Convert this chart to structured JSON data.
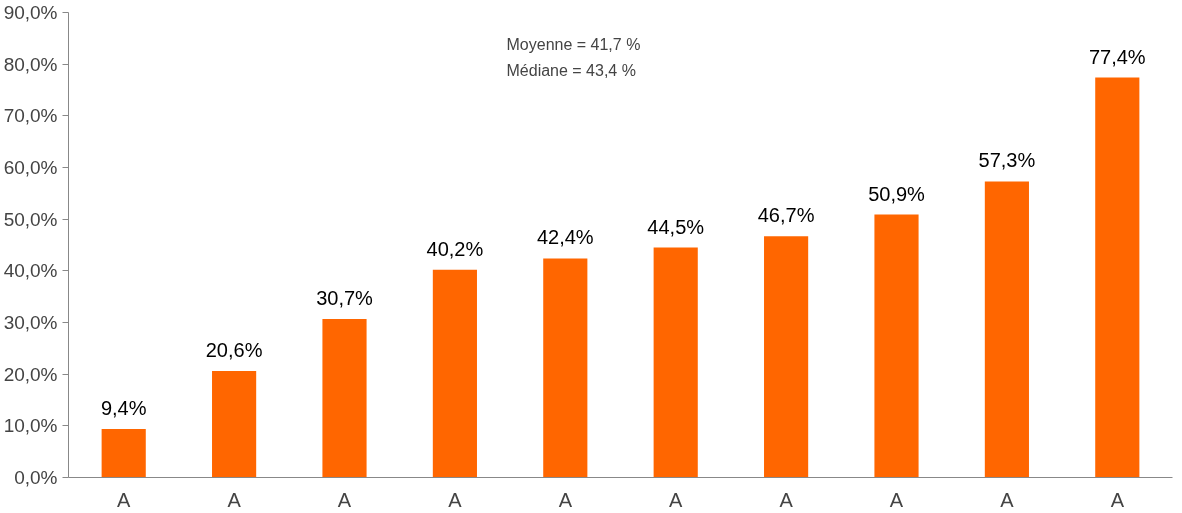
{
  "chart_data": {
    "type": "bar",
    "categories": [
      "A",
      "A",
      "A",
      "A",
      "A",
      "A",
      "A",
      "A",
      "A",
      "A"
    ],
    "values": [
      9.4,
      20.6,
      30.7,
      40.2,
      42.4,
      44.5,
      46.7,
      50.9,
      57.3,
      77.4
    ],
    "color": "#ff6600",
    "value_labels": [
      "9,4%",
      "20,6%",
      "30,7%",
      "40,2%",
      "42,4%",
      "44,5%",
      "46,7%",
      "50,9%",
      "57,3%",
      "77,4%"
    ],
    "ylim": [
      0,
      90
    ],
    "yticks": [
      {
        "value": 0,
        "label": "0,0%"
      },
      {
        "value": 10,
        "label": "10,0%"
      },
      {
        "value": 20,
        "label": "20,0%"
      },
      {
        "value": 30,
        "label": "30,0%"
      },
      {
        "value": 40,
        "label": "40,0%"
      },
      {
        "value": 50,
        "label": "50,0%"
      },
      {
        "value": 60,
        "label": "60,0%"
      },
      {
        "value": 70,
        "label": "70,0%"
      },
      {
        "value": 80,
        "label": "80,0%"
      },
      {
        "value": 90,
        "label": "90,0%"
      }
    ],
    "annotations": [
      "Moyenne = 41,7 %",
      "Médiane = 43,4 %"
    ],
    "grid": false
  }
}
